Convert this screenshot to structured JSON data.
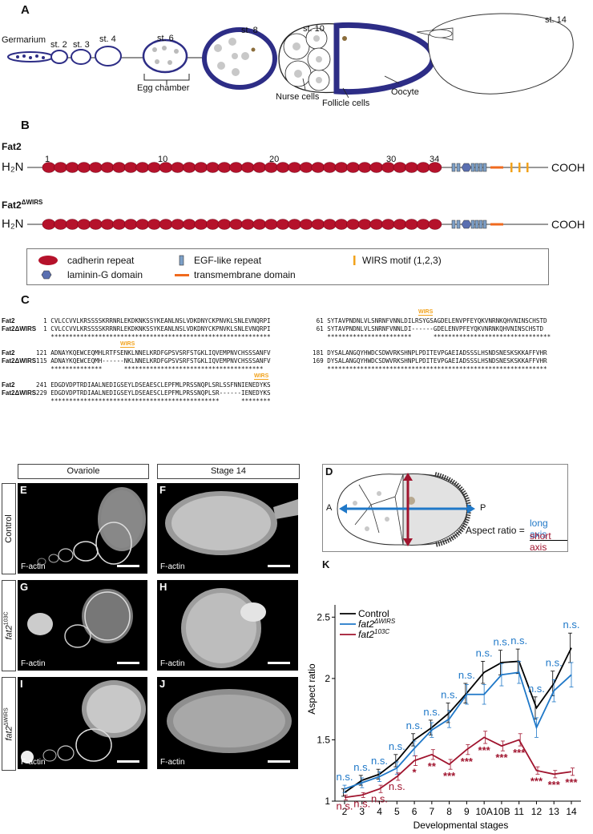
{
  "panels": {
    "a": "A",
    "b": "B",
    "c": "C",
    "d": "D",
    "e": "E",
    "f": "F",
    "g": "G",
    "h": "H",
    "i": "I",
    "j": "J",
    "k": "K"
  },
  "panel_a": {
    "germarium": "Germarium",
    "stages": [
      "st. 2",
      "st. 3",
      "st. 4",
      "st. 6",
      "st. 8",
      "st. 10",
      "st. 14"
    ],
    "egg_chamber": "Egg chamber",
    "nurse_cells": "Nurse cells",
    "follicle_cells": "Follicle cells",
    "oocyte": "Oocyte",
    "colors": {
      "follicle": "#2d2d86",
      "oocyte_nucleus": "#8b6d3b"
    }
  },
  "panel_b": {
    "fat2": "Fat2",
    "fat2_dwirs": "Fat2",
    "fat2_dwirs_sup": "ΔWIRS",
    "h2n": "H₂N",
    "cooh": "COOH",
    "repeat_numbers": [
      "1",
      "10",
      "20",
      "30",
      "34"
    ],
    "colors": {
      "cadherin": "#b5122b",
      "egf": "#7da0c8",
      "laminin": "#5a6fb0",
      "tm": "#f06a1e",
      "wirs": "#f2a21b"
    },
    "legend": {
      "cadherin": "cadherin repeat",
      "laminin": "laminin-G domain",
      "egf": "EGF-like repeat",
      "tm": "transmembrane domain",
      "wirs": "WIRS motif (1,2,3)"
    }
  },
  "panel_c": {
    "wirs_label": "WIRS",
    "blocks": [
      {
        "name1": "Fat2",
        "name2": "Fat2ΔWIRS",
        "l1": "  1 CVLCCVVLKRSSSSKRRNRLEKDKNKSSYKEANLNSLVDKDNYCKPNVKLSNLEVNQRPI",
        "l2": "  1 CVLCCVVLKRSSSSKRRNRLEKDKNKSSYKEANLNSLVDKDNYCKPNVKLSNLEVNQRPI",
        "l3": "    ************************************************************",
        "r1": " 61 SYTAVPNDNLVLSNRNFVNNLDILRSYGSAGDELENVPFEYQKVNRNKQHVNINSCHSTD",
        "r2": " 61 SYTAVPNDNLVLSNRNFVNNLDI------GDELENVPFEYQKVNRNKQHVNINSCHSTD",
        "r3": "    ***********************      ********************************"
      },
      {
        "name1": "Fat2",
        "name2": "Fat2ΔWIRS",
        "l1": "121 ADNAYKQEWCEQMHLRTFSENKLNNELKRDFGPSVSRFSTGKLIQVEMPNVCHSSSANFV",
        "l2": "115 ADNAYKQEWCEQMH------NKLNNELKRDFGPSVSRFSTGKLIQVEMPNVCHSSSANFV",
        "l3": "    **************      **************************************",
        "r1": "181 DYSALANGQYHWDCSDWVRKSHNPLPDITEVPGAEIADSSSLHSNDSNESKSKKAFFVHR",
        "r2": "169 DYSALANGQYHWDCSDWVRKSHNPLPDITEVPGAEIADSSSLHSNDSNESKSKKAFFVHR",
        "r3": "    ************************************************************"
      },
      {
        "name1": "Fat2",
        "name2": "Fat2ΔWIRS",
        "l1": "241 EDGDVDPTRDIAALNEDIGSEYLDSEAESCLEPFMLPRSSNQPLSRLSSFNNIENEDYKS",
        "l2": "229 EDGDVDPTRDIAALNEDIGSEYLDSEAESCLEPFMLPRSSNQPLSR------IENEDYKS",
        "l3": "    **********************************************      ********",
        "r1": "",
        "r2": "",
        "r3": ""
      }
    ]
  },
  "micrographs": {
    "col1": "Ovariole",
    "col2": "Stage 14",
    "row1": "Control",
    "row2": "fat2",
    "row2_sup": "103C",
    "row3": "fat2",
    "row3_sup": "ΔWIRS",
    "stain": "F-actin"
  },
  "panel_d": {
    "a": "A",
    "p": "P",
    "aspect_ratio": "Aspect ratio =",
    "long_axis": "long axis",
    "short_axis": "short axis",
    "colors": {
      "long": "#1f78c8",
      "short": "#a0142e"
    }
  },
  "chart_data": {
    "type": "line",
    "title": "",
    "xlabel": "Developmental stages",
    "ylabel": "Aspect ratio",
    "categories": [
      "2",
      "3",
      "4",
      "5",
      "6",
      "7",
      "8",
      "9",
      "10A",
      "10B",
      "11",
      "12",
      "13",
      "14"
    ],
    "ylim": [
      1.0,
      2.6
    ],
    "yticks": [
      "1",
      "1.5",
      "2",
      "2.5"
    ],
    "series": [
      {
        "name": "Control",
        "color": "#000000",
        "values": [
          1.07,
          1.17,
          1.22,
          1.33,
          1.5,
          1.6,
          1.72,
          1.88,
          2.05,
          2.13,
          2.14,
          1.76,
          1.96,
          2.25
        ],
        "errors": [
          0.03,
          0.04,
          0.04,
          0.05,
          0.05,
          0.06,
          0.08,
          0.08,
          0.09,
          0.1,
          0.1,
          0.09,
          0.1,
          0.12
        ]
      },
      {
        "name": "fat2ΔWIRS",
        "color": "#1f78c8",
        "values": [
          1.1,
          1.15,
          1.2,
          1.27,
          1.43,
          1.58,
          1.67,
          1.87,
          1.87,
          2.03,
          2.05,
          1.6,
          1.9,
          2.03
        ],
        "errors": [
          0.03,
          0.04,
          0.04,
          0.05,
          0.06,
          0.06,
          0.07,
          0.08,
          0.08,
          0.09,
          0.09,
          0.08,
          0.09,
          0.1
        ]
      },
      {
        "name": "fat2103C",
        "color": "#a0142e",
        "values": [
          1.03,
          1.05,
          1.1,
          1.2,
          1.33,
          1.38,
          1.3,
          1.42,
          1.52,
          1.45,
          1.5,
          1.25,
          1.22,
          1.24
        ],
        "errors": [
          0.02,
          0.02,
          0.03,
          0.03,
          0.04,
          0.04,
          0.04,
          0.04,
          0.05,
          0.04,
          0.05,
          0.03,
          0.03,
          0.03
        ]
      }
    ],
    "legend": [
      "Control",
      "fat2",
      "fat2"
    ],
    "legend_sup": [
      "",
      "ΔWIRS",
      "103C"
    ],
    "legend_position": "top-left",
    "blue_annotations": [
      "n.s.",
      "n.s.",
      "n.s.",
      "n.s.",
      "n.s.",
      "n.s.",
      "n.s.",
      "n.s.",
      "n.s.",
      "n.s.",
      "n.s.",
      "n.s.",
      "n.s.",
      "n.s."
    ],
    "red_annotations": [
      "n.s.",
      "n.s.",
      "n.s.",
      "n.s.",
      "*",
      "**",
      "***",
      "***",
      "***",
      "***",
      "***",
      "***",
      "***",
      "***"
    ]
  }
}
